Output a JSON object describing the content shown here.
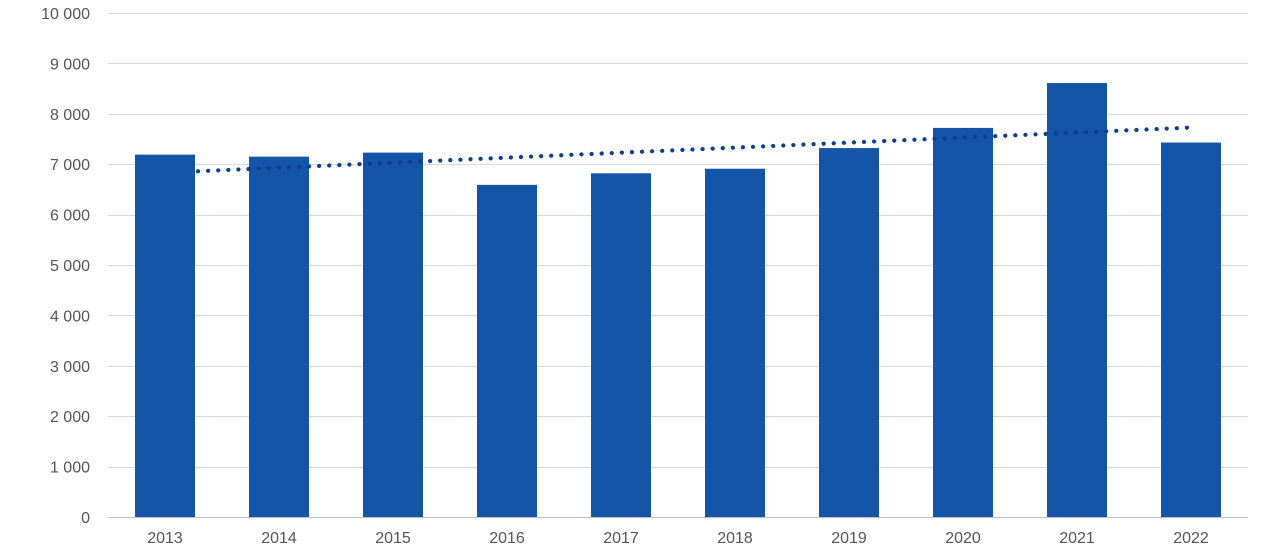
{
  "chart_data": {
    "type": "bar",
    "categories": [
      "2013",
      "2014",
      "2015",
      "2016",
      "2017",
      "2018",
      "2019",
      "2020",
      "2021",
      "2022"
    ],
    "values": [
      7190,
      7150,
      7230,
      6590,
      6820,
      6910,
      7320,
      7720,
      8610,
      7430
    ],
    "trendline": {
      "type": "linear",
      "style": "dotted",
      "start": 6860,
      "end": 7730
    },
    "ylim": [
      0,
      10000
    ],
    "yticks": [
      0,
      1000,
      2000,
      3000,
      4000,
      5000,
      6000,
      7000,
      8000,
      9000,
      10000
    ],
    "ytick_labels": [
      "0",
      "1 000",
      "2 000",
      "3 000",
      "4 000",
      "5 000",
      "6 000",
      "7 000",
      "8 000",
      "9 000",
      "10 000"
    ],
    "title": "",
    "xlabel": "",
    "ylabel": "",
    "grid": true,
    "legend": "none",
    "colors": {
      "bar": "#1555a8",
      "trend": "#0d3f8c",
      "grid": "#d9d9d9"
    }
  }
}
